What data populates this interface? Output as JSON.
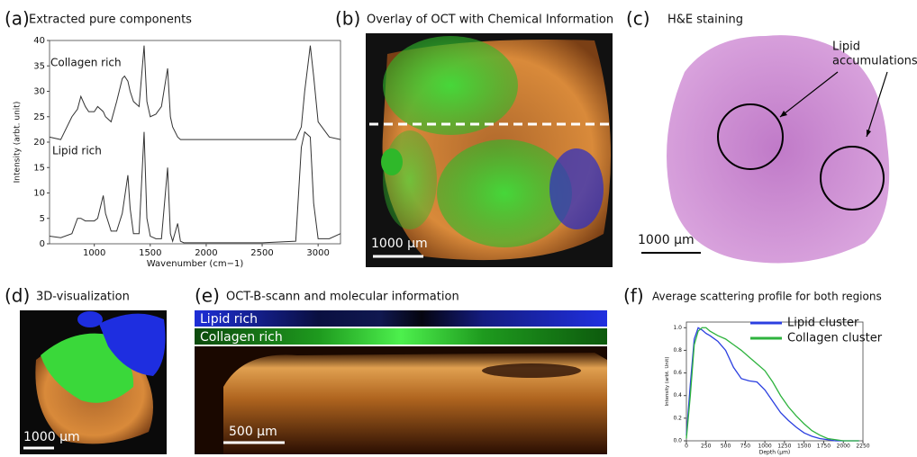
{
  "chart_data": [
    {
      "type": "line",
      "panel_label": "(a)",
      "title": "Extracted pure components",
      "x_label": "Wavenumber (cm−1)",
      "y_label": "Intensity (arbt. unit)",
      "annotations": [
        "Collagen rich",
        "Lipid rich"
      ],
      "x": [
        600,
        700,
        800,
        850,
        880,
        920,
        950,
        1000,
        1030,
        1080,
        1100,
        1150,
        1200,
        1250,
        1270,
        1300,
        1320,
        1350,
        1400,
        1445,
        1470,
        1500,
        1550,
        1600,
        1655,
        1680,
        1700,
        1745,
        1770,
        1800,
        2000,
        2500,
        2800,
        2850,
        2880,
        2930,
        2960,
        3000,
        3100,
        3200
      ],
      "series": [
        {
          "color": "#333333",
          "values": [
            21,
            20.5,
            25,
            26.5,
            29,
            27,
            26,
            26,
            27,
            26,
            25,
            24,
            28,
            32.5,
            33,
            32,
            30,
            28,
            27,
            39,
            28,
            25,
            25.5,
            27,
            34.5,
            25,
            23,
            21,
            20.5,
            20.5,
            20.5,
            20.5,
            20.5,
            23,
            30,
            39,
            33,
            24,
            21,
            20.5
          ]
        },
        {
          "color": "#333333",
          "values": [
            1.5,
            1.2,
            2,
            5,
            5,
            4.5,
            4.5,
            4.5,
            5,
            9.5,
            6,
            2.5,
            2.5,
            6,
            9,
            13.5,
            7,
            2,
            2,
            22,
            5,
            1.5,
            1,
            1,
            15,
            2,
            0.5,
            4,
            0.5,
            0.2,
            0.2,
            0.2,
            0.5,
            19,
            22,
            21,
            8,
            1,
            1,
            2
          ]
        }
      ],
      "xlim": [
        600,
        3200
      ],
      "xticks": [
        1000,
        1500,
        2000,
        2500,
        3000
      ],
      "ylim": [
        0,
        40
      ],
      "yticks": [
        0,
        5,
        10,
        15,
        20,
        25,
        30,
        35,
        40
      ]
    },
    {
      "type": "line",
      "panel_label": "(f)",
      "title": "Average scattering profile for both regions",
      "x_label": "Depth (μm)",
      "y_label": "Intensity (arbt. Unit)",
      "x": [
        0,
        50,
        100,
        150,
        200,
        250,
        300,
        400,
        500,
        600,
        700,
        800,
        900,
        1000,
        1100,
        1200,
        1300,
        1400,
        1500,
        1600,
        1700,
        1800,
        1900,
        2000,
        2100,
        2200
      ],
      "series": [
        {
          "name": "Lipid cluster",
          "color": "#2b3fe0",
          "values": [
            0.05,
            0.5,
            0.9,
            1.0,
            0.98,
            0.95,
            0.93,
            0.88,
            0.8,
            0.65,
            0.55,
            0.53,
            0.52,
            0.45,
            0.35,
            0.25,
            0.18,
            0.12,
            0.07,
            0.04,
            0.02,
            0.01,
            0.0,
            0.0,
            0.0,
            0.0
          ]
        },
        {
          "name": "Collagen cluster",
          "color": "#2eb33e",
          "values": [
            0.02,
            0.4,
            0.85,
            0.97,
            1.0,
            1.0,
            0.97,
            0.93,
            0.9,
            0.85,
            0.8,
            0.74,
            0.68,
            0.62,
            0.52,
            0.4,
            0.3,
            0.22,
            0.15,
            0.09,
            0.05,
            0.02,
            0.01,
            0.0,
            0.0,
            0.0
          ]
        }
      ],
      "legend": "upper right",
      "xlim": [
        0,
        2250
      ],
      "xticks": [
        0,
        250,
        500,
        750,
        1000,
        1250,
        1500,
        1750,
        2000,
        2250
      ],
      "ylim": [
        0,
        1.05
      ],
      "yticks": [
        {
          "value": 0,
          "label": "0.0"
        },
        0.2,
        0.4,
        0.6,
        0.8,
        {
          "value": 1,
          "label": "1.0"
        }
      ]
    }
  ],
  "panels": {
    "b": {
      "label": "(b)",
      "title": "Overlay of OCT with Chemical Information",
      "scale_bar": "1000 μm"
    },
    "c": {
      "label": "(c)",
      "title": "H&E staining",
      "annotation": [
        "Lipid",
        "accumulations"
      ],
      "scale_bar": "1000 μm"
    },
    "d": {
      "label": "(d)",
      "title": "3D-visualization",
      "scale_bar": "1000 μm"
    },
    "e": {
      "label": "(e)",
      "title": "OCT-B-scann and molecular information",
      "bars": [
        "Lipid rich",
        "Collagen rich"
      ],
      "scale_bar": "500 μm"
    }
  }
}
